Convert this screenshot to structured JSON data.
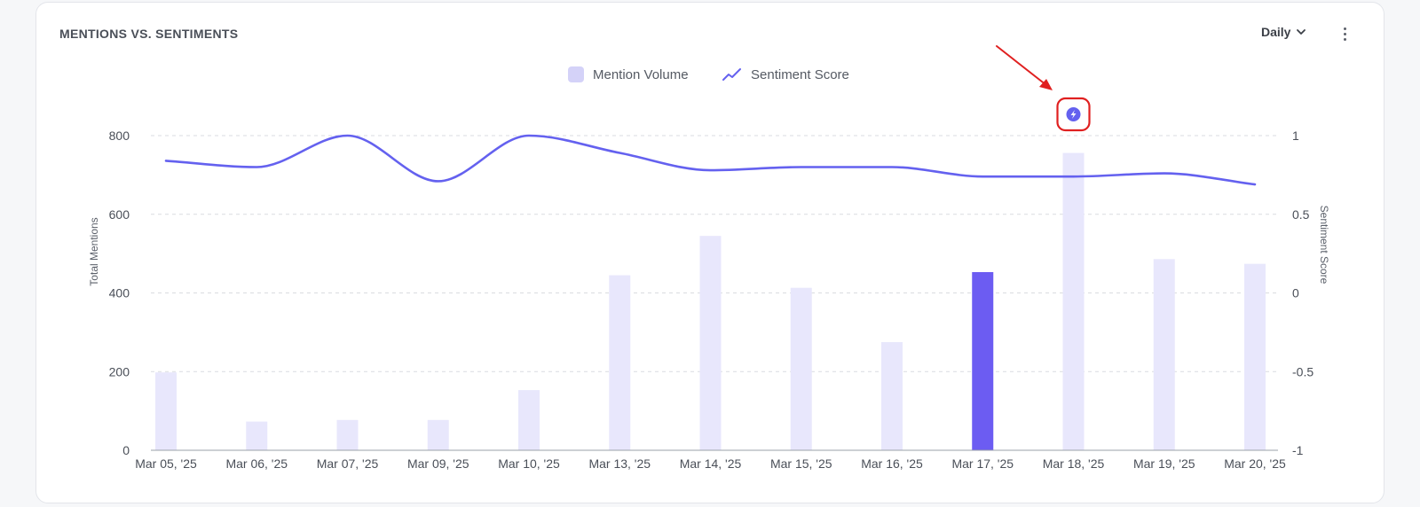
{
  "header": {
    "title": "MENTIONS VS. SENTIMENTS",
    "period_label": "Daily"
  },
  "legend": {
    "items": [
      "Mention Volume",
      "Sentiment Score"
    ]
  },
  "colors": {
    "bar": "#e8e7fc",
    "bar_highlight": "#6c5cf2",
    "line": "#6461ef",
    "grid": "#d9dbe0",
    "annotation_box": "#e02020",
    "annotation_arrow": "#e02020"
  },
  "annotation": {
    "icon": "lightning-bolt-icon",
    "target_category": "Mar 18, '25"
  },
  "chart_data": {
    "type": "bar",
    "categories": [
      "Mar 05, '25",
      "Mar 06, '25",
      "Mar 07, '25",
      "Mar 09, '25",
      "Mar 10, '25",
      "Mar 13, '25",
      "Mar 14, '25",
      "Mar 15, '25",
      "Mar 16, '25",
      "Mar 17, '25",
      "Mar 18, '25",
      "Mar 19, '25",
      "Mar 20, '25"
    ],
    "series": [
      {
        "name": "Mention Volume",
        "type": "bar",
        "axis": "left",
        "values": [
          198,
          73,
          77,
          77,
          153,
          445,
          545,
          413,
          275,
          453,
          756,
          486,
          474
        ],
        "highlight_index": 9
      },
      {
        "name": "Sentiment Score",
        "type": "line",
        "axis": "right",
        "values": [
          0.84,
          0.8,
          1.0,
          0.71,
          1.0,
          0.89,
          0.78,
          0.8,
          0.8,
          0.74,
          0.74,
          0.76,
          0.69
        ]
      }
    ],
    "ylabel": "Total Mentions",
    "y2label": "Sentiment Score",
    "ylim": [
      0,
      800
    ],
    "y2lim": [
      -1,
      1
    ],
    "yticks": [
      "0",
      "200",
      "400",
      "600",
      "800"
    ],
    "y2ticks": [
      "-1",
      "-0.5",
      "0",
      "0.5",
      "1"
    ],
    "grid": true,
    "legend_position": "top-center"
  }
}
